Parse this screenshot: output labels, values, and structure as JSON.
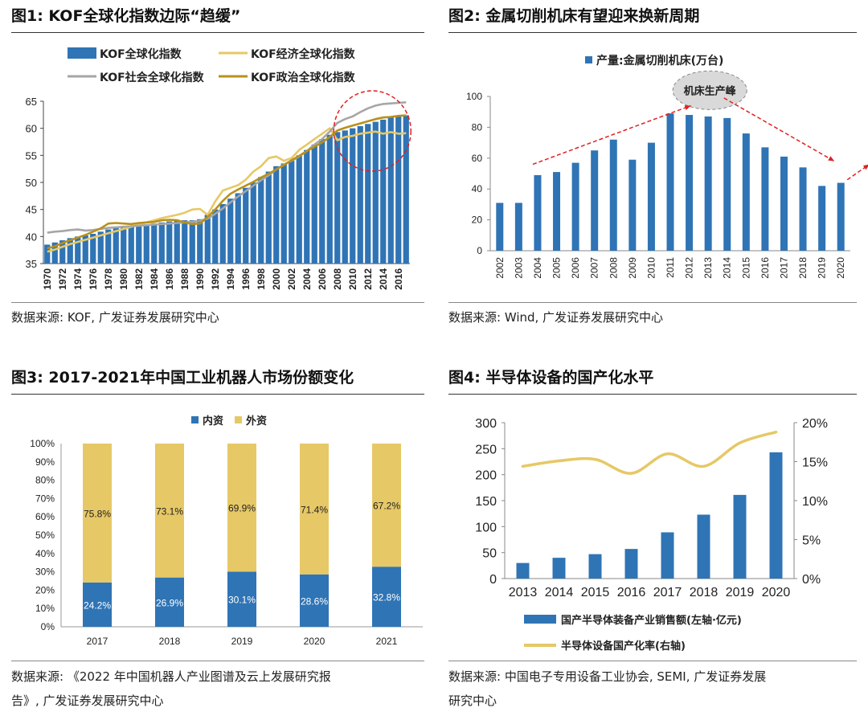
{
  "colors": {
    "bar_blue": "#2f74b5",
    "yellow": "#e6c866",
    "gray": "#a6a6a6",
    "gold": "#b8901a",
    "red": "#e02020"
  },
  "panels": {
    "p1": {
      "title": "图1:  KOF全球化指数边际“趋缓”",
      "source": "数据来源:  KOF,  广发证券发展研究中心"
    },
    "p2": {
      "title": "图2:  金属切削机床有望迎来换新周期",
      "source": "数据来源:  Wind,  广发证券发展研究中心",
      "annotation": "机床生产峰"
    },
    "p3": {
      "title": "图3:  2017-2021年中国工业机器人市场份额变化",
      "source_line1": "数据来源:  《2022 年中国机器人产业图谱及云上发展研究报",
      "source_line2": "告》,  广发证券发展研究中心"
    },
    "p4": {
      "title": "图4:  半导体设备的国产化水平",
      "source_line1": "数据来源:  中国电子专用设备工业协会,  SEMI,  广发证券发展",
      "source_line2": "研究中心"
    }
  },
  "chart_data": [
    {
      "id": "kof",
      "type": "bar",
      "legend": [
        "KOF全球化指数",
        "KOF经济全球化指数",
        "KOF社会全球化指数",
        "KOF政治全球化指数"
      ],
      "x": [
        1970,
        1971,
        1972,
        1973,
        1974,
        1975,
        1976,
        1977,
        1978,
        1979,
        1980,
        1981,
        1982,
        1983,
        1984,
        1985,
        1986,
        1987,
        1988,
        1989,
        1990,
        1991,
        1992,
        1993,
        1994,
        1995,
        1996,
        1997,
        1998,
        1999,
        2000,
        2001,
        2002,
        2003,
        2004,
        2005,
        2006,
        2007,
        2008,
        2009,
        2010,
        2011,
        2012,
        2013,
        2014,
        2015,
        2016,
        2017
      ],
      "xticks": [
        "1970",
        "1972",
        "1974",
        "1976",
        "1978",
        "1980",
        "1982",
        "1984",
        "1986",
        "1988",
        "1990",
        "1992",
        "1994",
        "1996",
        "1998",
        "2000",
        "2002",
        "2004",
        "2006",
        "2008",
        "2010",
        "2012",
        "2014",
        "2016"
      ],
      "ylim": [
        35,
        65
      ],
      "yticks": [
        "35",
        "40",
        "45",
        "50",
        "55",
        "60",
        "65"
      ],
      "series": [
        {
          "name": "KOF全球化指数",
          "kind": "bar",
          "values": [
            38.5,
            38.9,
            39.3,
            39.7,
            40.0,
            40.2,
            40.5,
            40.9,
            41.3,
            41.6,
            41.8,
            41.9,
            42.0,
            42.2,
            42.4,
            42.6,
            42.8,
            42.9,
            43.0,
            43.0,
            43.2,
            44.0,
            45.0,
            46.0,
            47.0,
            48.0,
            49.0,
            50.0,
            51.0,
            52.0,
            53.0,
            53.5,
            54.0,
            55.0,
            56.0,
            57.0,
            58.0,
            58.8,
            59.3,
            59.6,
            60.0,
            60.4,
            60.8,
            61.2,
            61.6,
            62.0,
            62.3,
            62.4
          ]
        },
        {
          "name": "KOF经济全球化指数",
          "kind": "line",
          "values": [
            37.2,
            37.6,
            38.1,
            38.6,
            39.0,
            39.4,
            39.8,
            40.2,
            40.6,
            41.0,
            41.4,
            41.8,
            42.2,
            42.6,
            43.0,
            43.4,
            43.7,
            44.0,
            44.4,
            45.0,
            45.1,
            44.0,
            46.5,
            48.5,
            49.0,
            49.5,
            50.5,
            52.0,
            53.0,
            54.5,
            54.8,
            54.0,
            54.5,
            56.0,
            57.0,
            58.0,
            59.0,
            60.0,
            57.8,
            58.4,
            58.6,
            59.0,
            59.2,
            59.4,
            59.0,
            59.3,
            59.0,
            59.1
          ]
        },
        {
          "name": "KOF社会全球化指数",
          "kind": "line",
          "values": [
            40.7,
            40.9,
            41.0,
            41.2,
            41.3,
            41.1,
            41.2,
            41.4,
            41.6,
            41.7,
            41.8,
            41.9,
            42.0,
            42.1,
            42.2,
            42.3,
            42.4,
            42.5,
            42.6,
            42.7,
            42.9,
            43.3,
            44.2,
            45.2,
            46.3,
            47.4,
            48.4,
            49.4,
            50.4,
            51.3,
            52.4,
            53.3,
            54.0,
            54.8,
            55.8,
            57.0,
            58.0,
            59.4,
            61.0,
            61.7,
            62.2,
            63.0,
            63.7,
            64.2,
            64.5,
            64.6,
            64.7,
            64.8
          ]
        },
        {
          "name": "KOF政治全球化指数",
          "kind": "line",
          "values": [
            37.8,
            38.2,
            38.8,
            39.3,
            39.8,
            40.3,
            40.9,
            41.5,
            42.4,
            42.5,
            42.4,
            42.3,
            42.5,
            42.6,
            42.7,
            43.0,
            43.1,
            43.0,
            42.6,
            42.3,
            42.4,
            43.6,
            45.0,
            46.6,
            47.9,
            48.7,
            49.4,
            50.1,
            50.9,
            51.6,
            52.4,
            53.2,
            54.1,
            54.9,
            55.8,
            56.6,
            57.4,
            58.4,
            59.6,
            60.1,
            60.5,
            60.9,
            61.3,
            61.7,
            62.0,
            62.1,
            62.3,
            62.4
          ]
        }
      ]
    },
    {
      "id": "machine-tools",
      "type": "bar",
      "legend": [
        "产量:金属切削机床(万台)"
      ],
      "categories": [
        "2002",
        "2003",
        "2004",
        "2005",
        "2006",
        "2007",
        "2008",
        "2009",
        "2010",
        "2011",
        "2012",
        "2013",
        "2014",
        "2015",
        "2016",
        "2017",
        "2018",
        "2019",
        "2020"
      ],
      "values": [
        31,
        31,
        49,
        51,
        57,
        65,
        72,
        59,
        70,
        89,
        88,
        87,
        86,
        76,
        67,
        61,
        54,
        42,
        44
      ],
      "ylim": [
        0,
        100
      ],
      "yticks": [
        "0",
        "20",
        "40",
        "60",
        "80",
        "100"
      ]
    },
    {
      "id": "robot-share",
      "type": "bar",
      "stacked": true,
      "legend": [
        "内资",
        "外资"
      ],
      "categories": [
        "2017",
        "2018",
        "2019",
        "2020",
        "2021"
      ],
      "series": [
        {
          "name": "内资",
          "values": [
            24.2,
            26.9,
            30.1,
            28.6,
            32.8
          ],
          "labels": [
            "24.2%",
            "26.9%",
            "30.1%",
            "28.6%",
            "32.8%"
          ]
        },
        {
          "name": "外资",
          "values": [
            75.8,
            73.1,
            69.9,
            71.4,
            67.2
          ],
          "labels": [
            "75.8%",
            "73.1%",
            "69.9%",
            "71.4%",
            "67.2%"
          ]
        }
      ],
      "ylim": [
        0,
        100
      ],
      "yticks": [
        "0%",
        "10%",
        "20%",
        "30%",
        "40%",
        "50%",
        "60%",
        "70%",
        "80%",
        "90%",
        "100%"
      ]
    },
    {
      "id": "semi-equipment",
      "type": "bar",
      "legend": [
        "国产半导体装备产业销售额(左轴·亿元)",
        "半导体设备国产化率(右轴)"
      ],
      "categories": [
        "2013",
        "2014",
        "2015",
        "2016",
        "2017",
        "2018",
        "2019",
        "2020"
      ],
      "series": [
        {
          "name": "国产半导体装备产业销售额(左轴·亿元)",
          "kind": "bar",
          "axis": "left",
          "values": [
            30,
            40,
            47,
            57,
            89,
            123,
            161,
            243
          ]
        },
        {
          "name": "半导体设备国产化率(右轴)",
          "kind": "line",
          "axis": "right",
          "values": [
            14.4,
            15.1,
            15.3,
            13.5,
            16.0,
            14.4,
            17.4,
            18.8
          ]
        }
      ],
      "ylim_left": [
        0,
        300
      ],
      "yticks_left": [
        "0",
        "50",
        "100",
        "150",
        "200",
        "250",
        "300"
      ],
      "ylim_right": [
        0,
        20
      ],
      "yticks_right": [
        "0%",
        "5%",
        "10%",
        "15%",
        "20%"
      ]
    }
  ]
}
